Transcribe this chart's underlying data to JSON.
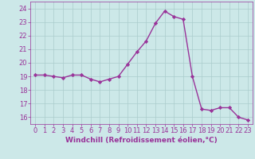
{
  "hours": [
    0,
    1,
    2,
    3,
    4,
    5,
    6,
    7,
    8,
    9,
    10,
    11,
    12,
    13,
    14,
    15,
    16,
    17,
    18,
    19,
    20,
    21,
    22,
    23
  ],
  "values": [
    19.1,
    19.1,
    19.0,
    18.9,
    19.1,
    19.1,
    18.8,
    18.6,
    18.8,
    19.0,
    19.9,
    20.8,
    21.6,
    22.9,
    23.8,
    23.4,
    23.2,
    19.0,
    16.6,
    16.5,
    16.7,
    16.7,
    16.0,
    15.8
  ],
  "line_color": "#993399",
  "marker": "D",
  "marker_size": 2.2,
  "bg_color": "#cce8e8",
  "grid_color": "#aacccc",
  "xlabel": "Windchill (Refroidissement éolien,°C)",
  "ylim": [
    15.5,
    24.5
  ],
  "yticks": [
    16,
    17,
    18,
    19,
    20,
    21,
    22,
    23,
    24
  ],
  "xlim": [
    -0.5,
    23.5
  ],
  "xlabel_fontsize": 6.5,
  "tick_fontsize": 6.0,
  "line_width": 1.0,
  "xlabel_color": "#993399",
  "tick_color": "#993399",
  "spine_color": "#993399"
}
